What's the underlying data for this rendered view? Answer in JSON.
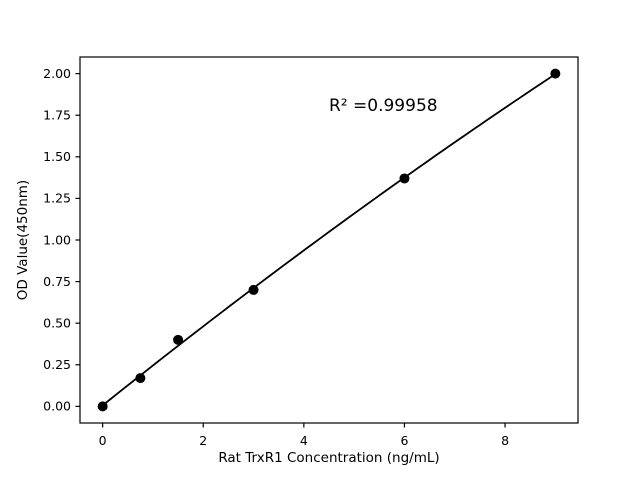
{
  "figure": {
    "background": "#ffffff",
    "foreground": "#000000"
  },
  "chart_data": {
    "type": "scatter",
    "title": "",
    "xlabel": "Rat TrxR1 Concentration (ng/mL)",
    "ylabel": "OD Value(450nm)",
    "annotation": "R² =0.99958",
    "x": [
      0,
      0.75,
      1.5,
      3,
      6,
      9
    ],
    "y": [
      0.0,
      0.17,
      0.4,
      0.7,
      1.37,
      2.0
    ],
    "fit": "quadratic",
    "xlim": [
      -0.45,
      9.45
    ],
    "ylim": [
      -0.1,
      2.1
    ],
    "x_ticks": {
      "values": [
        0,
        2,
        4,
        6,
        8
      ],
      "labels": [
        "0",
        "2",
        "4",
        "6",
        "8"
      ]
    },
    "y_ticks": {
      "values": [
        0.0,
        0.25,
        0.5,
        0.75,
        1.0,
        1.25,
        1.5,
        1.75,
        2.0
      ],
      "labels": [
        "0.00",
        "0.25",
        "0.50",
        "0.75",
        "1.00",
        "1.25",
        "1.50",
        "1.75",
        "2.00"
      ]
    },
    "grid": false,
    "legend": null,
    "marker_color": "#000000",
    "line_color": "#000000"
  }
}
